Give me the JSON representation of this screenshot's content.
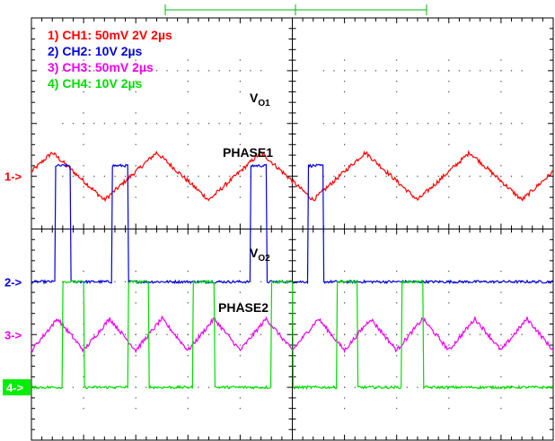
{
  "chart_data": {
    "type": "line",
    "title": "",
    "grid": true,
    "divisions": {
      "x": 10,
      "y": 8
    },
    "time_per_div_us": 2,
    "legend": [
      {
        "text": "1) CH1: 50mV 2V 2µs",
        "color": "#ff0000"
      },
      {
        "text": "2) CH2: 10V 2µs",
        "color": "#0000dd"
      },
      {
        "text": "3) CH3: 50mV 2µs",
        "color": "#ee00ee"
      },
      {
        "text": "4) CH4: 10V 2µs",
        "color": "#00dd00"
      }
    ],
    "labels": {
      "vo1": {
        "main": "V",
        "sub": "O1"
      },
      "phase1": "PHASE1",
      "vo2": {
        "main": "V",
        "sub": "O2"
      },
      "phase2": "PHASE2"
    },
    "series": [
      {
        "name": "CH1",
        "marker": "1->",
        "color": "#ff0000",
        "ground_div": 3.0,
        "kind": "ripple",
        "period_us": 4.0,
        "peak_us": [
          0.8,
          4.8,
          8.8,
          12.8,
          16.8
        ],
        "amplitude_div": 0.45
      },
      {
        "name": "CH2",
        "marker": "2->",
        "color": "#0000dd",
        "ground_div": 5.0,
        "kind": "pulse",
        "high_div": 2.2,
        "pulses_us": [
          [
            0.9,
            1.5
          ],
          [
            3.1,
            3.7
          ],
          [
            8.4,
            9.0
          ],
          [
            10.6,
            11.2
          ]
        ]
      },
      {
        "name": "CH3",
        "marker": "3->",
        "color": "#ee00ee",
        "ground_div": 6.0,
        "kind": "ripple",
        "period_us": 2.0,
        "peak_us": [
          1.0,
          3.0,
          5.0,
          7.0,
          9.0,
          11.0,
          13.0,
          15.0,
          17.0,
          19.0
        ],
        "amplitude_div": 0.3
      },
      {
        "name": "CH4",
        "marker": "4->",
        "color": "#00dd00",
        "ground_div": 7.0,
        "kind": "pulse",
        "high_div": 2.0,
        "pulses_us": [
          [
            1.2,
            2.0
          ],
          [
            3.7,
            4.5
          ],
          [
            6.2,
            7.0
          ],
          [
            9.2,
            10.0
          ],
          [
            11.7,
            12.5
          ],
          [
            14.2,
            15.0
          ]
        ]
      }
    ]
  }
}
